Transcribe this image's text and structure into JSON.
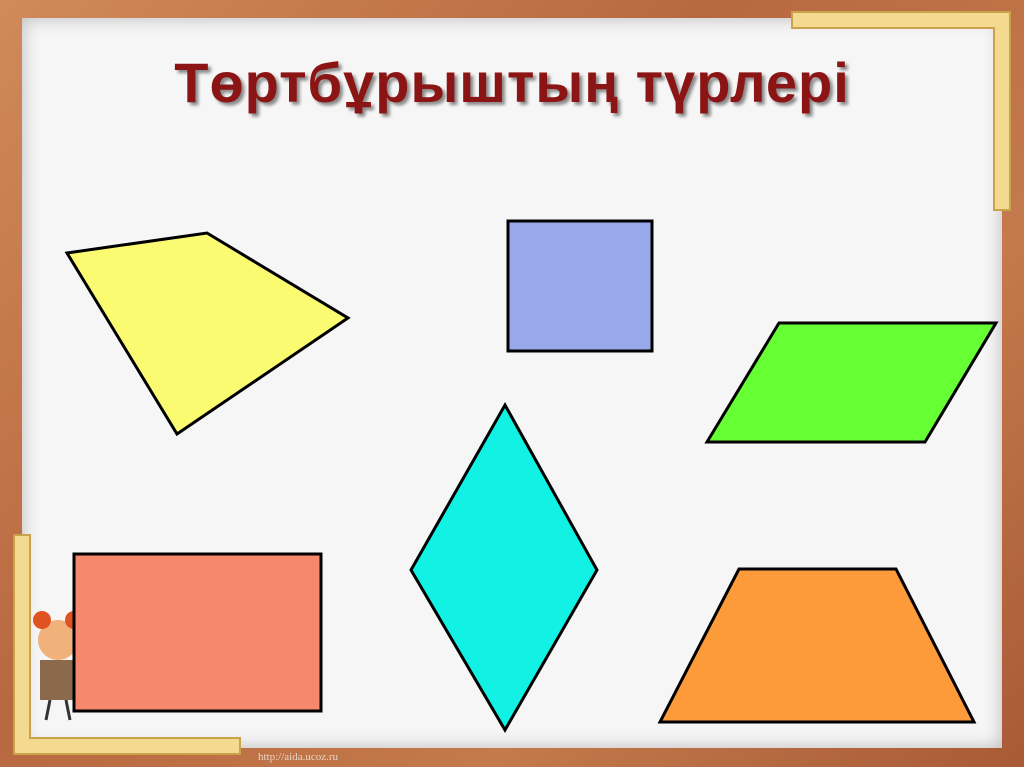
{
  "slide": {
    "title": "Төртбұрыштың түрлері",
    "credit": "http://aida.ucoz.ru"
  },
  "shapes": [
    {
      "name": "quadrilateral-yellow",
      "kind": "quadrilateral",
      "color": "#fbfb72"
    },
    {
      "name": "square-blue",
      "kind": "square",
      "color": "#98a8ea"
    },
    {
      "name": "parallelogram-green",
      "kind": "parallelogram",
      "color": "#66ff33"
    },
    {
      "name": "rhombus-cyan",
      "kind": "rhombus",
      "color": "#12f2e4"
    },
    {
      "name": "rectangle-salmon",
      "kind": "rectangle",
      "color": "#f6896d"
    },
    {
      "name": "trapezoid-orange",
      "kind": "trapezoid",
      "color": "#fd9a3a"
    }
  ],
  "colors": {
    "frame": "#b8683f",
    "gold_accent": "#f0d080",
    "title": "#8b1414"
  }
}
